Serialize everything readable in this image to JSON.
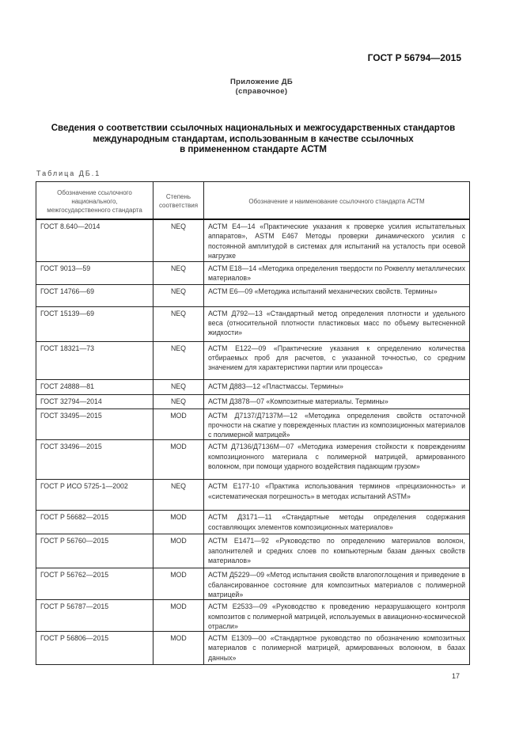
{
  "header": {
    "doc_id": "ГОСТ Р 56794—2015"
  },
  "appendix": {
    "title": "Приложение ДБ",
    "subtitle": "(справочное)"
  },
  "title": {
    "lines": [
      "Сведения о соответствии ссылочных национальных и межгосударственных стандартов",
      "международным стандартам, использованным в качестве ссылочных",
      "в примененном стандарте АСТМ"
    ]
  },
  "table": {
    "label": "Таблица ДБ.1",
    "headers": [
      "Обозначение ссылочного национального, межгосударственного стандарта",
      "Степень соответствия",
      "Обозначение и наименование ссылочного стандарта АСТМ"
    ],
    "rows": [
      {
        "national": "ГОСТ 8.640—2014",
        "degree": "NEQ",
        "astm": "АСТМ Е4—14 «Практические указания к проверке усилия испытательных аппаратов», ASTM E467 Методы проверки динамического усилия с постоянной амплитудой в системах для испытаний на усталость при осевой нагрузке"
      },
      {
        "national": "ГОСТ 9013—59",
        "degree": "NEQ",
        "astm": "АСТМ Е18—14 «Методика определения твердости по Роквеллу металлических материалов»"
      },
      {
        "national": "ГОСТ 14766—69",
        "degree": "NEQ",
        "astm": "АСТМ Е6—09 «Методика испытаний механических свойств. Термины»"
      },
      {
        "national": "ГОСТ 15139—69",
        "degree": "NEQ",
        "astm": "АСТМ Д792—13 «Стандартный метод определения плотности и удельного веса (относительной плотности пластиковых масс по объему вытесненной жидкости»"
      },
      {
        "national": "ГОСТ 18321—73",
        "degree": "NEQ",
        "astm": "АСТМ Е122—09 «Практические указания к определению количества отбираемых проб для расчетов, с указанной точностью, со средним значением для характеристики партии или процесса»"
      },
      {
        "national": "ГОСТ 24888—81",
        "degree": "NEQ",
        "astm": "АСТМ Д883—12 «Пластмассы. Термины»"
      },
      {
        "national": "ГОСТ 32794—2014",
        "degree": "NEQ",
        "astm": "АСТМ Д3878—07 «Композитные материалы. Термины»"
      },
      {
        "national": "ГОСТ 33495—2015",
        "degree": "MOD",
        "astm": "АСТМ Д7137/Д7137М—12 «Методика определения свойств остаточной прочности на сжатие у поврежденных пластин из композиционных материалов с полимерной матрицей»"
      },
      {
        "national": "ГОСТ 33496—2015",
        "degree": "MOD",
        "astm": "АСТМ Д7136/Д7136М—07 «Методика измерения стойкости к повреждениям композиционного материала с полимерной матрицей, армированного волокном, при помощи ударного воздействия падающим грузом»"
      },
      {
        "national": "ГОСТ Р ИСО 5725-1—2002",
        "degree": "NEQ",
        "astm": "АСТМ Е177-10 «Практика использования терминов «прецизионность» и «систематическая погрешность» в методах испытаний ASTM»"
      },
      {
        "national": "ГОСТ Р 56682—2015",
        "degree": "MOD",
        "astm": "АСТМ Д3171—11 «Стандартные методы определения содержания составляющих элементов композиционных материалов»"
      },
      {
        "national": "ГОСТ Р 56760—2015",
        "degree": "MOD",
        "astm": "АСТМ Е1471—92 «Руководство по определению материалов волокон, заполнителей и средних слоев по компьютерным базам данных свойств материалов»"
      },
      {
        "national": "ГОСТ Р 56762—2015",
        "degree": "MOD",
        "astm": "АСТМ Д5229—09 «Метод испытания свойств влагопоглощения и приведение в сбалансированное состояние для композитных материалов с полимерной матрицей»"
      },
      {
        "national": "ГОСТ Р 56787—2015",
        "degree": "MOD",
        "astm": "АСТМ Е2533—09 «Руководство к проведению неразрушающего контроля композитов с полимерной матрицей, используемых в авиационно-космической отрасли»"
      },
      {
        "national": "ГОСТ Р 56806—2015",
        "degree": "MOD",
        "astm": "АСТМ Е1309—00 «Стандартное руководство по обозначению композитных материалов с полимерной матрицей, армированных волокном, в базах данных»"
      }
    ]
  },
  "page_number": "17"
}
